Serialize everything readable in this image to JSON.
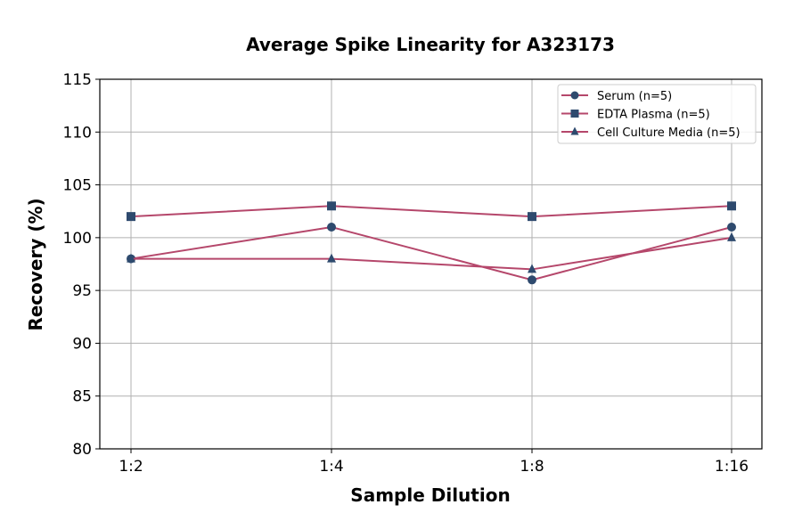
{
  "chart_data": {
    "type": "line",
    "title": "Average Spike Linearity for A323173",
    "xlabel": "Sample Dilution",
    "ylabel": "Recovery (%)",
    "categories": [
      "1:2",
      "1:4",
      "1:8",
      "1:16"
    ],
    "ylim": [
      80,
      115
    ],
    "yticks": [
      80,
      85,
      90,
      95,
      100,
      105,
      110,
      115
    ],
    "grid": true,
    "legend_position": "top-right",
    "line_color": "#b5476b",
    "marker_color": "#2e4a6e",
    "series": [
      {
        "name": "Serum (n=5)",
        "marker": "circle",
        "values": [
          98,
          101,
          96,
          101
        ]
      },
      {
        "name": "EDTA Plasma (n=5)",
        "marker": "square",
        "values": [
          102,
          103,
          102,
          103
        ]
      },
      {
        "name": "Cell Culture Media (n=5)",
        "marker": "triangle",
        "values": [
          98,
          98,
          97,
          100
        ]
      }
    ]
  }
}
